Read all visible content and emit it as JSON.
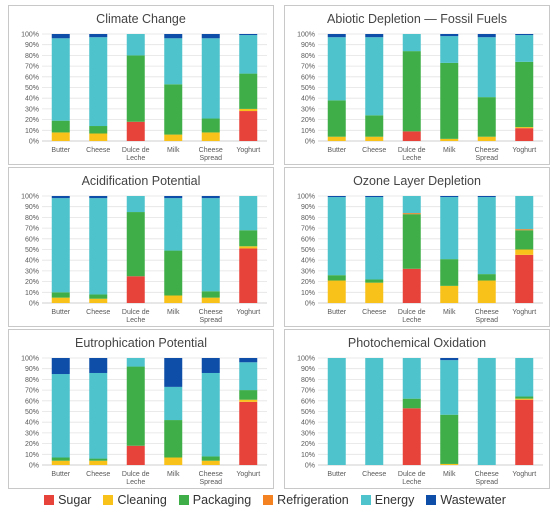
{
  "categories": [
    "Butter",
    "Cheese",
    "Dulce de Leche",
    "Milk",
    "Cheese Spread",
    "Yoghurt"
  ],
  "legend": [
    {
      "name": "Sugar",
      "color": "#e8433a"
    },
    {
      "name": "Cleaning",
      "color": "#f8c21b"
    },
    {
      "name": "Packaging",
      "color": "#3fae49"
    },
    {
      "name": "Refrigeration",
      "color": "#f58220"
    },
    {
      "name": "Energy",
      "color": "#4ec3cc"
    },
    {
      "name": "Wastewater",
      "color": "#0e4ea8"
    }
  ],
  "chart_data": [
    {
      "type": "bar",
      "stacked": true,
      "title": "Climate Change",
      "categories": [
        "Butter",
        "Cheese",
        "Dulce de Leche",
        "Milk",
        "Cheese Spread",
        "Yoghurt"
      ],
      "ylim": [
        0,
        100
      ],
      "yticks": [
        "0%",
        "10%",
        "20%",
        "30%",
        "40%",
        "50%",
        "60%",
        "70%",
        "80%",
        "90%",
        "100%"
      ],
      "series": [
        {
          "name": "Sugar",
          "values": [
            0,
            0,
            18,
            0,
            0,
            28
          ]
        },
        {
          "name": "Cleaning",
          "values": [
            8,
            7,
            0,
            6,
            8,
            2
          ]
        },
        {
          "name": "Packaging",
          "values": [
            11,
            7,
            62,
            47,
            13,
            33
          ]
        },
        {
          "name": "Refrigeration",
          "values": [
            0,
            0,
            0,
            0,
            0,
            0
          ]
        },
        {
          "name": "Energy",
          "values": [
            77,
            83,
            20,
            43,
            75,
            36
          ]
        },
        {
          "name": "Wastewater",
          "values": [
            4,
            3,
            0,
            4,
            4,
            1
          ]
        }
      ]
    },
    {
      "type": "bar",
      "stacked": true,
      "title": "Abiotic Depletion — Fossil Fuels",
      "categories": [
        "Butter",
        "Cheese",
        "Dulce de Leche",
        "Milk",
        "Cheese Spread",
        "Yoghurt"
      ],
      "ylim": [
        0,
        100
      ],
      "yticks": [
        "0%",
        "10%",
        "20%",
        "30%",
        "40%",
        "50%",
        "60%",
        "70%",
        "80%",
        "90%",
        "100%"
      ],
      "series": [
        {
          "name": "Sugar",
          "values": [
            0,
            0,
            9,
            0,
            0,
            12
          ]
        },
        {
          "name": "Cleaning",
          "values": [
            4,
            4,
            0,
            2,
            4,
            1
          ]
        },
        {
          "name": "Packaging",
          "values": [
            34,
            20,
            75,
            71,
            37,
            61
          ]
        },
        {
          "name": "Refrigeration",
          "values": [
            0,
            0,
            0,
            0,
            0,
            0
          ]
        },
        {
          "name": "Energy",
          "values": [
            59,
            73,
            16,
            25,
            56,
            25
          ]
        },
        {
          "name": "Wastewater",
          "values": [
            3,
            3,
            0,
            2,
            3,
            1
          ]
        }
      ]
    },
    {
      "type": "bar",
      "stacked": true,
      "title": "Acidification Potential",
      "categories": [
        "Butter",
        "Cheese",
        "Dulce de Leche",
        "Milk",
        "Cheese Spread",
        "Yoghurt"
      ],
      "ylim": [
        0,
        100
      ],
      "yticks": [
        "0%",
        "10%",
        "20%",
        "30%",
        "40%",
        "50%",
        "60%",
        "70%",
        "80%",
        "90%",
        "100%"
      ],
      "series": [
        {
          "name": "Sugar",
          "values": [
            0,
            0,
            25,
            0,
            0,
            51
          ]
        },
        {
          "name": "Cleaning",
          "values": [
            5,
            4,
            0,
            7,
            5,
            2
          ]
        },
        {
          "name": "Packaging",
          "values": [
            5,
            4,
            60,
            42,
            6,
            15
          ]
        },
        {
          "name": "Refrigeration",
          "values": [
            0,
            0,
            0,
            0,
            0,
            0
          ]
        },
        {
          "name": "Energy",
          "values": [
            88,
            90,
            15,
            49,
            87,
            32
          ]
        },
        {
          "name": "Wastewater",
          "values": [
            2,
            2,
            0,
            2,
            2,
            0
          ]
        }
      ]
    },
    {
      "type": "bar",
      "stacked": true,
      "title": "Ozone Layer Depletion",
      "categories": [
        "Butter",
        "Cheese",
        "Dulce de Leche",
        "Milk",
        "Cheese Spread",
        "Yoghurt"
      ],
      "ylim": [
        0,
        100
      ],
      "yticks": [
        "0%",
        "10%",
        "20%",
        "30%",
        "40%",
        "50%",
        "60%",
        "70%",
        "80%",
        "90%",
        "100%"
      ],
      "series": [
        {
          "name": "Sugar",
          "values": [
            0,
            0,
            32,
            0,
            0,
            45
          ]
        },
        {
          "name": "Cleaning",
          "values": [
            21,
            19,
            0,
            16,
            21,
            5
          ]
        },
        {
          "name": "Packaging",
          "values": [
            5,
            3,
            51,
            25,
            6,
            18
          ]
        },
        {
          "name": "Refrigeration",
          "values": [
            0,
            0,
            1,
            0,
            0,
            1
          ]
        },
        {
          "name": "Energy",
          "values": [
            73,
            77,
            16,
            58,
            72,
            31
          ]
        },
        {
          "name": "Wastewater",
          "values": [
            1,
            1,
            0,
            1,
            1,
            0
          ]
        }
      ]
    },
    {
      "type": "bar",
      "stacked": true,
      "title": "Eutrophication Potential",
      "categories": [
        "Butter",
        "Cheese",
        "Dulce de Leche",
        "Milk",
        "Cheese Spread",
        "Yoghurt"
      ],
      "ylim": [
        0,
        100
      ],
      "yticks": [
        "0%",
        "10%",
        "20%",
        "30%",
        "40%",
        "50%",
        "60%",
        "70%",
        "80%",
        "90%",
        "100%"
      ],
      "series": [
        {
          "name": "Sugar",
          "values": [
            0,
            0,
            18,
            0,
            0,
            59
          ]
        },
        {
          "name": "Cleaning",
          "values": [
            4,
            4,
            0,
            7,
            4,
            2
          ]
        },
        {
          "name": "Packaging",
          "values": [
            3,
            2,
            74,
            35,
            4,
            9
          ]
        },
        {
          "name": "Refrigeration",
          "values": [
            0,
            0,
            0,
            0,
            0,
            0
          ]
        },
        {
          "name": "Energy",
          "values": [
            78,
            80,
            8,
            31,
            78,
            26
          ]
        },
        {
          "name": "Wastewater",
          "values": [
            15,
            14,
            0,
            27,
            14,
            4
          ]
        }
      ]
    },
    {
      "type": "bar",
      "stacked": true,
      "title": "Photochemical Oxidation",
      "categories": [
        "Butter",
        "Cheese",
        "Dulce de Leche",
        "Milk",
        "Cheese Spread",
        "Yoghurt"
      ],
      "ylim": [
        0,
        100
      ],
      "yticks": [
        "0%",
        "10%",
        "20%",
        "30%",
        "40%",
        "50%",
        "60%",
        "70%",
        "80%",
        "90%",
        "100%"
      ],
      "series": [
        {
          "name": "Sugar",
          "values": [
            0,
            0,
            53,
            0,
            0,
            61
          ]
        },
        {
          "name": "Cleaning",
          "values": [
            0,
            0,
            0,
            1,
            0,
            1
          ]
        },
        {
          "name": "Packaging",
          "values": [
            0,
            0,
            9,
            46,
            0,
            2
          ]
        },
        {
          "name": "Refrigeration",
          "values": [
            0,
            0,
            0,
            0,
            0,
            0
          ]
        },
        {
          "name": "Energy",
          "values": [
            100,
            100,
            38,
            51,
            100,
            36
          ]
        },
        {
          "name": "Wastewater",
          "values": [
            0,
            0,
            0,
            2,
            0,
            0
          ]
        }
      ]
    }
  ]
}
